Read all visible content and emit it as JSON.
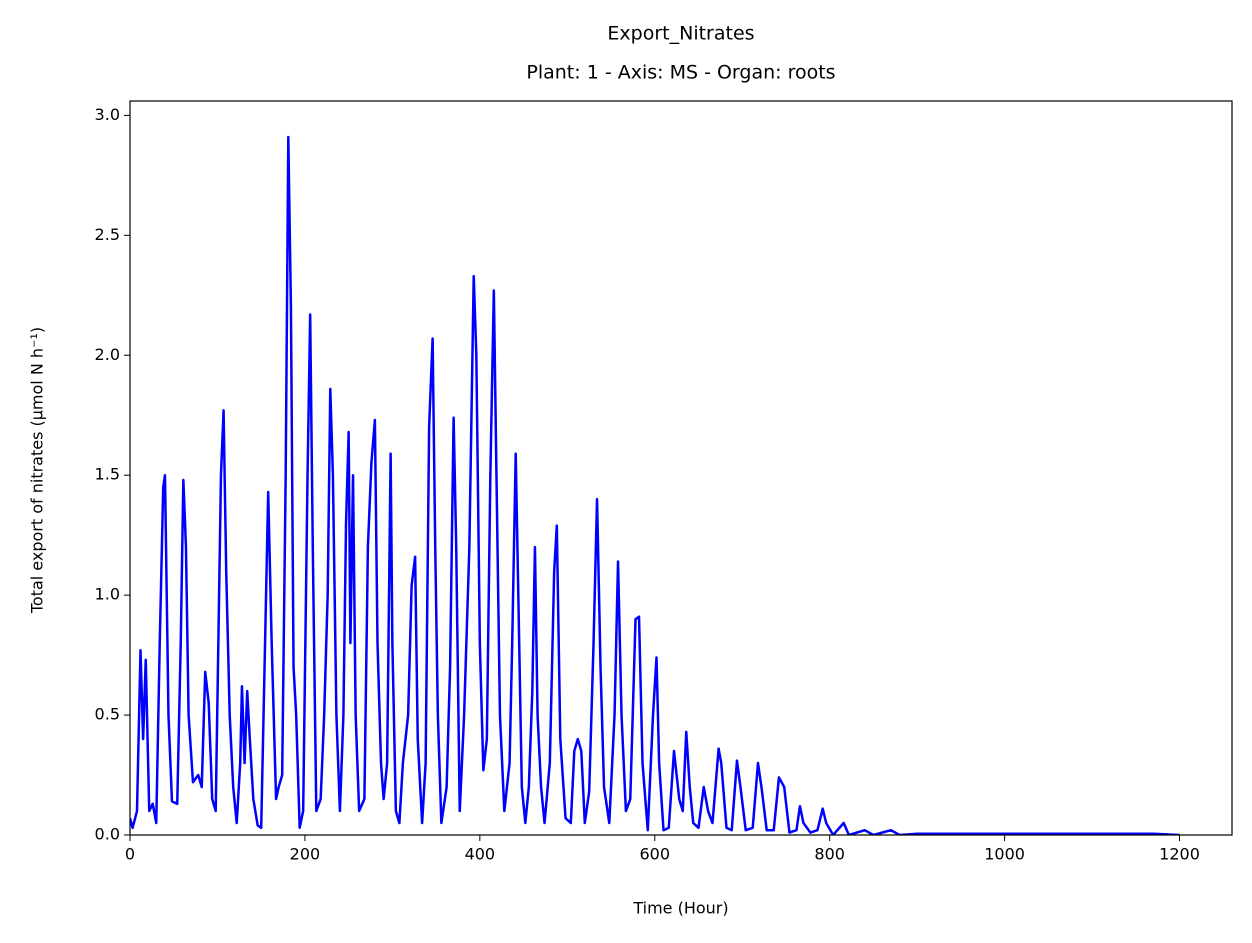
{
  "chart_data": {
    "type": "line",
    "title": "Export_Nitrates",
    "subtitle": "Plant: 1 - Axis: MS - Organ: roots",
    "x_label": "Time (Hour)",
    "y_label": "Total export of nitrates (µmol N h⁻¹)",
    "xlim": [
      0,
      1260
    ],
    "ylim": [
      0,
      3.06
    ],
    "xticks": [
      0,
      200,
      400,
      600,
      800,
      1000,
      1200
    ],
    "yticks": [
      {
        "value": 0,
        "label": "0.0"
      },
      {
        "value": 0.5,
        "label": "0.5"
      },
      {
        "value": 1,
        "label": "1.0"
      },
      {
        "value": 1.5,
        "label": "1.5"
      },
      {
        "value": 2,
        "label": "2.0"
      },
      {
        "value": 2.5,
        "label": "2.5"
      },
      {
        "value": 3,
        "label": "3.0"
      }
    ],
    "grid": false,
    "color": "#0000ff",
    "x": [
      0,
      3,
      8,
      12,
      15,
      18,
      22,
      26,
      30,
      34,
      38,
      40,
      44,
      48,
      54,
      58,
      61,
      64,
      67,
      72,
      78,
      82,
      86,
      90,
      94,
      98,
      104,
      107,
      110,
      114,
      118,
      122,
      126,
      128,
      131,
      134,
      137,
      141,
      146,
      150,
      155,
      158,
      162,
      167,
      170,
      174,
      178,
      181,
      184,
      187,
      190,
      194,
      198,
      203,
      206,
      209,
      213,
      218,
      222,
      226,
      229,
      232,
      236,
      240,
      244,
      247,
      250,
      252,
      255,
      258,
      262,
      268,
      272,
      276,
      280,
      283,
      287,
      290,
      294,
      298,
      300,
      304,
      308,
      312,
      318,
      322,
      326,
      329,
      334,
      338,
      342,
      346,
      349,
      352,
      356,
      362,
      366,
      370,
      373,
      377,
      382,
      388,
      393,
      396,
      400,
      404,
      408,
      412,
      416,
      419,
      423,
      428,
      434,
      437,
      441,
      444,
      448,
      452,
      456,
      460,
      463,
      466,
      470,
      474,
      480,
      485,
      488,
      492,
      498,
      504,
      508,
      512,
      516,
      520,
      525,
      530,
      534,
      538,
      542,
      548,
      554,
      558,
      562,
      567,
      572,
      578,
      582,
      586,
      592,
      598,
      602,
      605,
      610,
      616,
      622,
      628,
      632,
      636,
      640,
      644,
      650,
      656,
      661,
      666,
      673,
      676,
      682,
      688,
      694,
      698,
      704,
      712,
      718,
      722,
      728,
      736,
      742,
      748,
      754,
      762,
      766,
      770,
      778,
      786,
      792,
      796,
      804,
      816,
      822,
      840,
      850,
      870,
      880,
      900,
      930,
      960,
      990,
      1020,
      1050,
      1080,
      1110,
      1140,
      1170,
      1200
    ],
    "values": [
      0.07,
      0.03,
      0.1,
      0.77,
      0.4,
      0.73,
      0.1,
      0.13,
      0.05,
      0.8,
      1.45,
      1.5,
      0.5,
      0.14,
      0.13,
      0.8,
      1.48,
      1.2,
      0.5,
      0.22,
      0.25,
      0.2,
      0.68,
      0.55,
      0.15,
      0.1,
      1.5,
      1.77,
      1.1,
      0.5,
      0.2,
      0.05,
      0.3,
      0.62,
      0.3,
      0.6,
      0.4,
      0.15,
      0.04,
      0.03,
      0.9,
      1.43,
      0.8,
      0.15,
      0.2,
      0.25,
      1.5,
      2.91,
      2.2,
      0.7,
      0.5,
      0.03,
      0.1,
      1.5,
      2.17,
      1.2,
      0.1,
      0.15,
      0.5,
      1.0,
      1.86,
      1.5,
      0.5,
      0.1,
      0.5,
      1.3,
      1.68,
      0.8,
      1.5,
      0.5,
      0.1,
      0.15,
      1.2,
      1.55,
      1.73,
      0.8,
      0.3,
      0.15,
      0.3,
      1.59,
      0.8,
      0.1,
      0.05,
      0.3,
      0.5,
      1.04,
      1.16,
      0.4,
      0.05,
      0.3,
      1.7,
      2.07,
      1.2,
      0.5,
      0.05,
      0.2,
      0.7,
      1.74,
      1.2,
      0.1,
      0.5,
      1.2,
      2.33,
      2.0,
      0.8,
      0.27,
      0.4,
      1.5,
      2.27,
      1.5,
      0.5,
      0.1,
      0.3,
      0.8,
      1.59,
      1.0,
      0.2,
      0.05,
      0.2,
      0.6,
      1.2,
      0.5,
      0.2,
      0.05,
      0.3,
      1.1,
      1.29,
      0.4,
      0.07,
      0.05,
      0.35,
      0.4,
      0.35,
      0.05,
      0.18,
      0.8,
      1.4,
      0.7,
      0.2,
      0.05,
      0.5,
      1.14,
      0.5,
      0.1,
      0.15,
      0.9,
      0.91,
      0.3,
      0.02,
      0.5,
      0.74,
      0.3,
      0.02,
      0.03,
      0.35,
      0.15,
      0.1,
      0.43,
      0.2,
      0.05,
      0.03,
      0.2,
      0.1,
      0.05,
      0.36,
      0.3,
      0.03,
      0.02,
      0.31,
      0.2,
      0.02,
      0.03,
      0.3,
      0.2,
      0.02,
      0.02,
      0.24,
      0.2,
      0.01,
      0.02,
      0.12,
      0.05,
      0.01,
      0.02,
      0.11,
      0.05,
      0,
      0.05,
      0,
      0.02,
      0,
      0.02,
      0,
      0.005,
      0.005,
      0.005,
      0.005,
      0.005,
      0.005,
      0.005,
      0.005,
      0.005,
      0.005,
      0
    ]
  }
}
